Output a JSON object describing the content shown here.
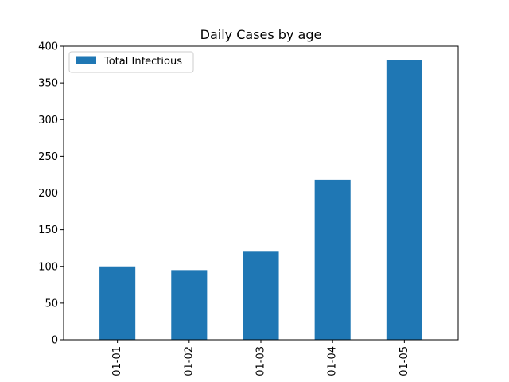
{
  "chart_data": {
    "type": "bar",
    "title": "Daily Cases by age",
    "xlabel": "",
    "ylabel": "",
    "categories": [
      "01-01",
      "01-02",
      "01-03",
      "01-04",
      "01-05"
    ],
    "series": [
      {
        "name": "Total Infectious",
        "color": "#1f77b4",
        "values": [
          100,
          95,
          120,
          218,
          381
        ]
      }
    ],
    "ylim": [
      0,
      400
    ],
    "yticks": [
      0,
      50,
      100,
      150,
      200,
      250,
      300,
      350,
      400
    ],
    "grid": false,
    "legend_position": "top-left"
  }
}
